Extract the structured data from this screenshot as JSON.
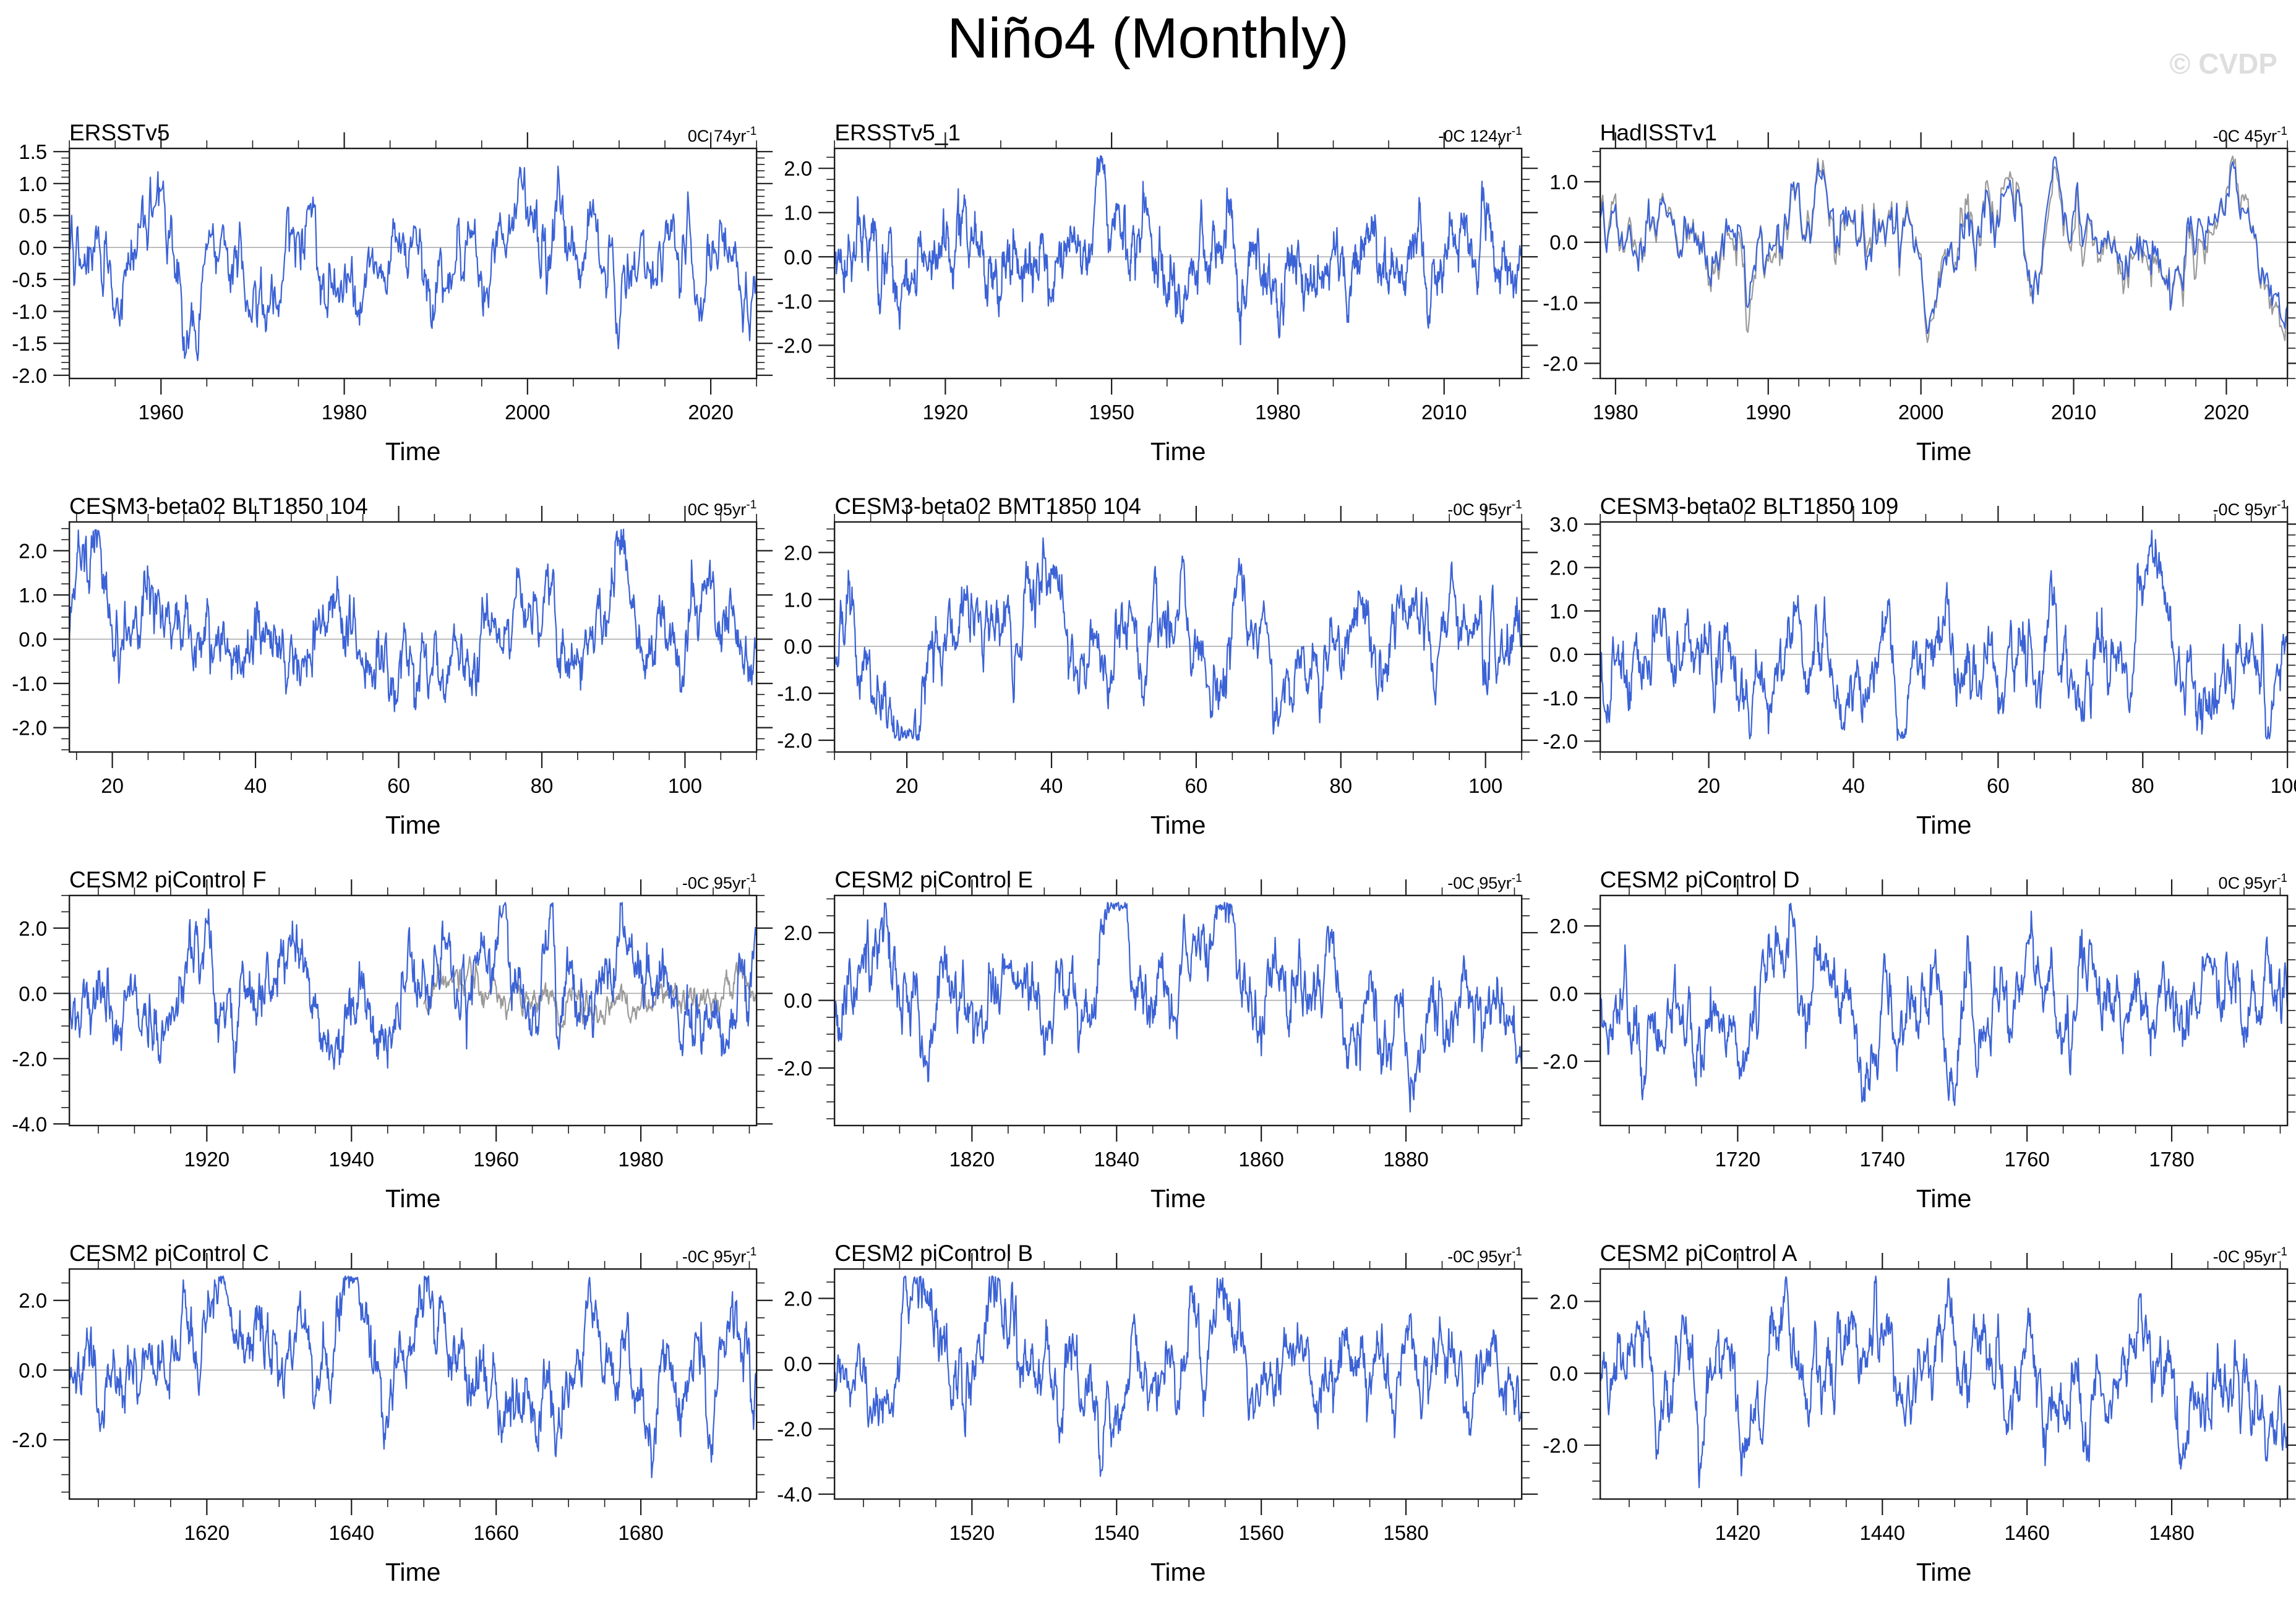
{
  "page": {
    "title": "Niño4 (Monthly)",
    "watermark": "© CVDP"
  },
  "colors": {
    "line": "#3B62D6",
    "overlay": "#9A9A9A",
    "zero_line": "#ADADAD",
    "frame": "#1C1C1C",
    "watermark": "#DEDEDE"
  },
  "chart_data": [
    {
      "type": "line",
      "title": "ERSSTv5",
      "trend_full": "0C 74yr⁻¹",
      "trend": "0C 74yr",
      "trend_sup": "-1",
      "xlabel": "Time",
      "seed": 101,
      "amp": 0.6,
      "x": {
        "min": 1950,
        "max": 2025,
        "majors": [
          1960,
          1980,
          2000,
          2020
        ],
        "labels": [
          "1960",
          "1980",
          "2000",
          "2020"
        ],
        "minor": 5
      },
      "y": {
        "min": -2.05,
        "max": 1.55,
        "majors": [
          1.5,
          1.0,
          0.5,
          0.0,
          -0.5,
          -1.0,
          -1.5,
          -2.0
        ],
        "labels": [
          "1.5",
          "1.0",
          "0.5",
          "0.0",
          "-0.5",
          "-1.0",
          "-1.5",
          "-2.0"
        ],
        "minor": 0.1
      },
      "overlay": null
    },
    {
      "type": "line",
      "title": "ERSSTv5_1",
      "trend_full": "-0C 124yr⁻¹",
      "trend": "-0C 124yr",
      "trend_sup": "-1",
      "xlabel": "Time",
      "seed": 102,
      "amp": 0.72,
      "x": {
        "min": 1900,
        "max": 2024,
        "majors": [
          1920,
          1950,
          1980,
          2010
        ],
        "labels": [
          "1920",
          "1950",
          "1980",
          "2010"
        ],
        "minor": 10
      },
      "y": {
        "min": -2.75,
        "max": 2.45,
        "majors": [
          2.0,
          1.0,
          0.0,
          -1.0,
          -2.0
        ],
        "labels": [
          "2.0",
          "1.0",
          "0.0",
          "-1.0",
          "-2.0"
        ],
        "minor": 0.25
      },
      "overlay": null
    },
    {
      "type": "line",
      "title": "HadISSTv1",
      "trend_full": "-0C 45yr⁻¹",
      "trend": "-0C 45yr",
      "trend_sup": "-1",
      "xlabel": "Time",
      "seed": 103,
      "amp": 0.62,
      "x": {
        "min": 1979,
        "max": 2024,
        "majors": [
          1980,
          1990,
          2000,
          2010,
          2020
        ],
        "labels": [
          "1980",
          "1990",
          "2000",
          "2010",
          "2020"
        ],
        "minor": 2
      },
      "y": {
        "min": -2.25,
        "max": 1.55,
        "majors": [
          1.0,
          0.0,
          -1.0,
          -2.0
        ],
        "labels": [
          "1.0",
          "0.0",
          "-1.0",
          "-2.0"
        ],
        "minor": 0.25
      },
      "overlay": {
        "mode": "track",
        "seed": 777,
        "amp": 0.1
      }
    },
    {
      "type": "line",
      "title": "CESM3-beta02 BLT1850 104",
      "trend_full": "0C 95yr⁻¹",
      "trend": "0C 95yr",
      "trend_sup": "-1",
      "xlabel": "Time",
      "seed": 104,
      "amp": 0.8,
      "x": {
        "min": 14,
        "max": 110,
        "majors": [
          20,
          40,
          60,
          80,
          100
        ],
        "labels": [
          "20",
          "40",
          "60",
          "80",
          "100"
        ],
        "minor": 5
      },
      "y": {
        "min": -2.55,
        "max": 2.65,
        "majors": [
          2.0,
          1.0,
          0.0,
          -1.0,
          -2.0
        ],
        "labels": [
          "2.0",
          "1.0",
          "0.0",
          "-1.0",
          "-2.0"
        ],
        "minor": 0.25
      },
      "overlay": null
    },
    {
      "type": "line",
      "title": "CESM3-beta02 BMT1850 104",
      "trend_full": "-0C 95yr⁻¹",
      "trend": "-0C 95yr",
      "trend_sup": "-1",
      "xlabel": "Time",
      "seed": 105,
      "amp": 0.8,
      "x": {
        "min": 10,
        "max": 105,
        "majors": [
          20,
          40,
          60,
          80,
          100
        ],
        "labels": [
          "20",
          "40",
          "60",
          "80",
          "100"
        ],
        "minor": 5
      },
      "y": {
        "min": -2.25,
        "max": 2.65,
        "majors": [
          2.0,
          1.0,
          0.0,
          -1.0,
          -2.0
        ],
        "labels": [
          "2.0",
          "1.0",
          "0.0",
          "-1.0",
          "-2.0"
        ],
        "minor": 0.25
      },
      "overlay": null
    },
    {
      "type": "line",
      "title": "CESM3-beta02 BLT1850 109",
      "trend_full": "-0C 95yr⁻¹",
      "trend": "-0C 95yr",
      "trend_sup": "-1",
      "xlabel": "Time",
      "seed": 106,
      "amp": 0.85,
      "x": {
        "min": 5,
        "max": 100,
        "majors": [
          20,
          40,
          60,
          80,
          100
        ],
        "labels": [
          "20",
          "40",
          "60",
          "80",
          "100"
        ],
        "minor": 5
      },
      "y": {
        "min": -2.25,
        "max": 3.05,
        "majors": [
          3.0,
          2.0,
          1.0,
          0.0,
          -1.0,
          -2.0
        ],
        "labels": [
          "3.0",
          "2.0",
          "1.0",
          "0.0",
          "-1.0",
          "-2.0"
        ],
        "minor": 0.25
      },
      "overlay": null
    },
    {
      "type": "line",
      "title": "CESM2 piControl F",
      "trend_full": "-0C 95yr⁻¹",
      "trend": "-0C 95yr",
      "trend_sup": "-1",
      "xlabel": "Time",
      "seed": 107,
      "amp": 1.12,
      "x": {
        "min": 1901,
        "max": 1996,
        "majors": [
          1920,
          1940,
          1960,
          1980
        ],
        "labels": [
          "1920",
          "1940",
          "1960",
          "1980"
        ],
        "minor": 5
      },
      "y": {
        "min": -4.05,
        "max": 3.0,
        "majors": [
          2.0,
          0.0,
          -2.0,
          -4.0
        ],
        "labels": [
          "2.0",
          "0.0",
          "-2.0",
          "-4.0"
        ],
        "minor": 0.5
      },
      "overlay": {
        "mode": "independent",
        "seed": 778,
        "amp": 0.5,
        "xstart": 1950
      }
    },
    {
      "type": "line",
      "title": "CESM2 piControl E",
      "trend_full": "-0C 95yr⁻¹",
      "trend": "-0C 95yr",
      "trend_sup": "-1",
      "xlabel": "Time",
      "seed": 108,
      "amp": 1.12,
      "x": {
        "min": 1801,
        "max": 1896,
        "majors": [
          1820,
          1840,
          1860,
          1880
        ],
        "labels": [
          "1820",
          "1840",
          "1860",
          "1880"
        ],
        "minor": 5
      },
      "y": {
        "min": -3.7,
        "max": 3.1,
        "majors": [
          2.0,
          0.0,
          -2.0
        ],
        "labels": [
          "2.0",
          "0.0",
          "-2.0"
        ],
        "minor": 0.5
      },
      "overlay": null
    },
    {
      "type": "line",
      "title": "CESM2 piControl D",
      "trend_full": "0C 95yr⁻¹",
      "trend": "0C 95yr",
      "trend_sup": "-1",
      "xlabel": "Time",
      "seed": 109,
      "amp": 1.12,
      "x": {
        "min": 1701,
        "max": 1796,
        "majors": [
          1720,
          1740,
          1760,
          1780
        ],
        "labels": [
          "1720",
          "1740",
          "1760",
          "1780"
        ],
        "minor": 5
      },
      "y": {
        "min": -3.9,
        "max": 2.9,
        "majors": [
          2.0,
          0.0,
          -2.0
        ],
        "labels": [
          "2.0",
          "0.0",
          "-2.0"
        ],
        "minor": 0.5
      },
      "overlay": null
    },
    {
      "type": "line",
      "title": "CESM2 piControl C",
      "trend_full": "-0C 95yr⁻¹",
      "trend": "-0C 95yr",
      "trend_sup": "-1",
      "xlabel": "Time",
      "seed": 110,
      "amp": 1.1,
      "x": {
        "min": 1601,
        "max": 1696,
        "majors": [
          1620,
          1640,
          1660,
          1680
        ],
        "labels": [
          "1620",
          "1640",
          "1660",
          "1680"
        ],
        "minor": 5
      },
      "y": {
        "min": -3.7,
        "max": 2.9,
        "majors": [
          2.0,
          0.0,
          -2.0
        ],
        "labels": [
          "2.0",
          "0.0",
          "-2.0"
        ],
        "minor": 0.5
      },
      "overlay": null
    },
    {
      "type": "line",
      "title": "CESM2 piControl B",
      "trend_full": "-0C 95yr⁻¹",
      "trend": "-0C 95yr",
      "trend_sup": "-1",
      "xlabel": "Time",
      "seed": 111,
      "amp": 1.12,
      "x": {
        "min": 1501,
        "max": 1596,
        "majors": [
          1520,
          1540,
          1560,
          1580
        ],
        "labels": [
          "1520",
          "1540",
          "1560",
          "1580"
        ],
        "minor": 5
      },
      "y": {
        "min": -4.15,
        "max": 2.9,
        "majors": [
          2.0,
          0.0,
          -2.0,
          -4.0
        ],
        "labels": [
          "2.0",
          "0.0",
          "-2.0",
          "-4.0"
        ],
        "minor": 0.5
      },
      "overlay": null
    },
    {
      "type": "line",
      "title": "CESM2 piControl A",
      "trend_full": "-0C 95yr⁻¹",
      "trend": "-0C 95yr",
      "trend_sup": "-1",
      "xlabel": "Time",
      "seed": 112,
      "amp": 1.05,
      "x": {
        "min": 1401,
        "max": 1496,
        "majors": [
          1420,
          1440,
          1460,
          1480
        ],
        "labels": [
          "1420",
          "1440",
          "1460",
          "1480"
        ],
        "minor": 5
      },
      "y": {
        "min": -3.5,
        "max": 2.9,
        "majors": [
          2.0,
          0.0,
          -2.0
        ],
        "labels": [
          "2.0",
          "0.0",
          "-2.0"
        ],
        "minor": 0.5
      },
      "overlay": null
    }
  ]
}
